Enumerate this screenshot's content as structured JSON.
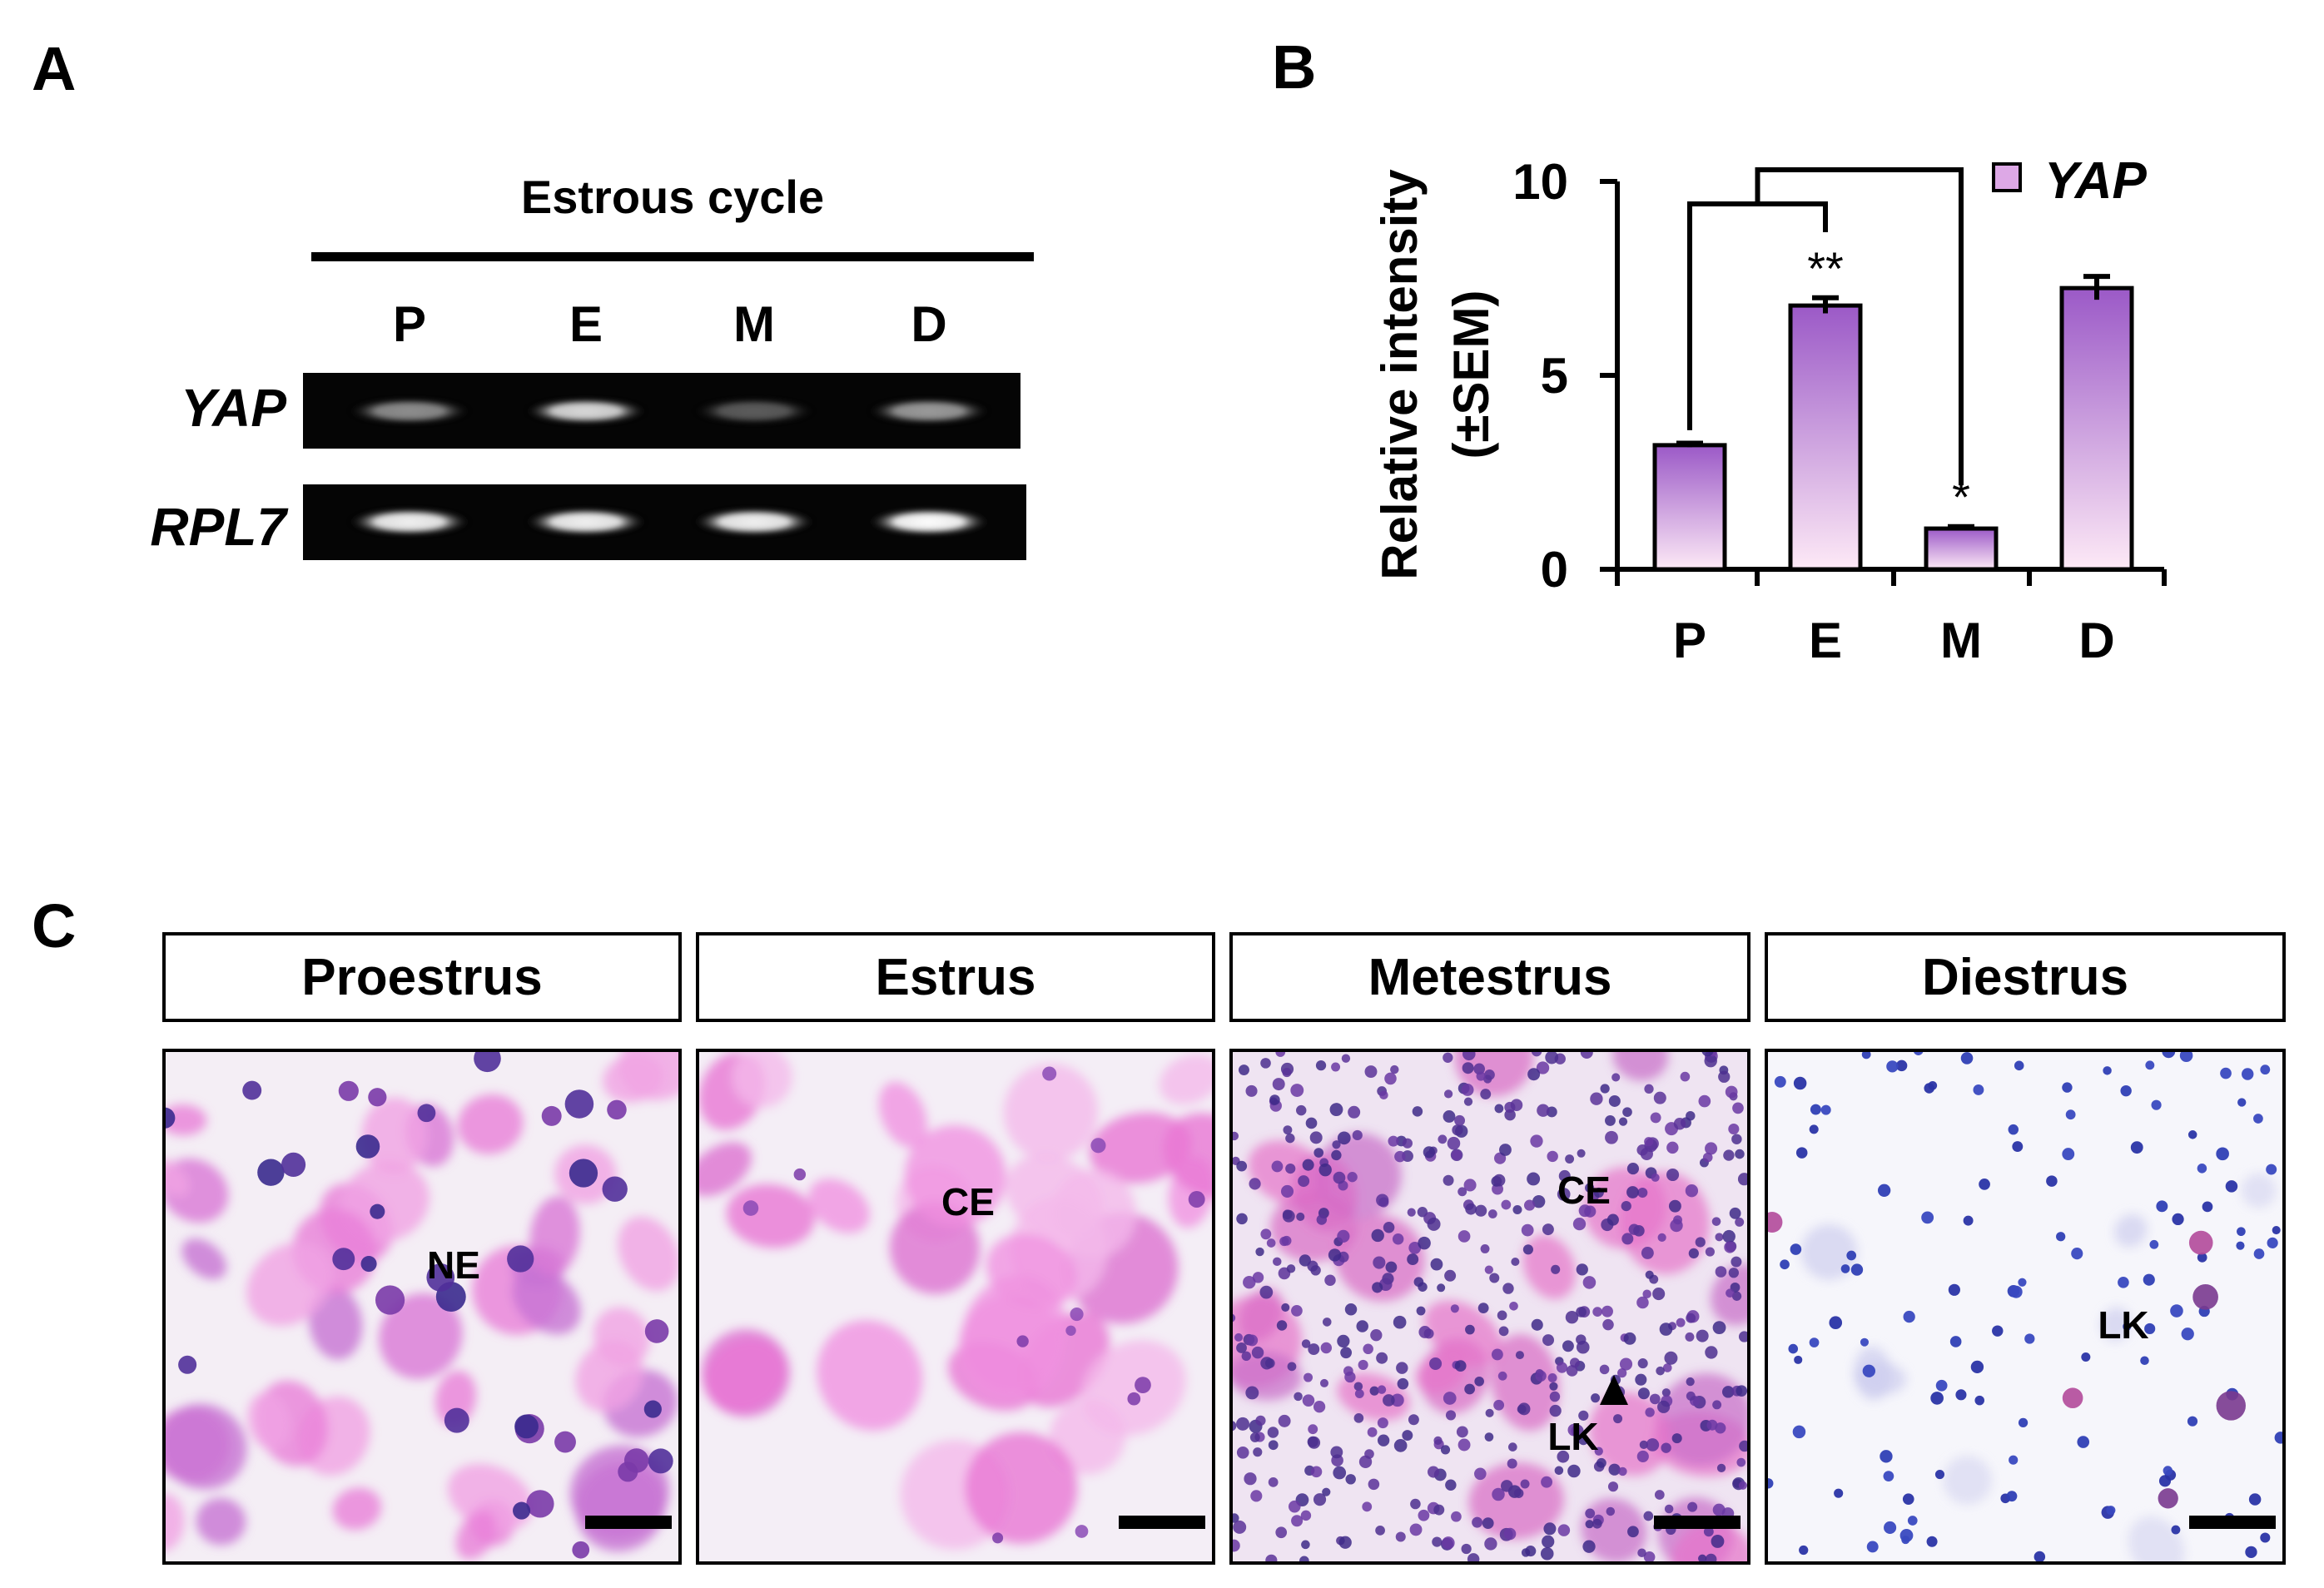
{
  "panels": {
    "a": {
      "letter": "A",
      "header": "Estrous cycle",
      "lanes": [
        "P",
        "E",
        "M",
        "D"
      ],
      "genes": [
        "YAP",
        "RPL7"
      ],
      "band_intensity": {
        "YAP": [
          0.55,
          0.85,
          0.35,
          0.6
        ],
        "RPL7": [
          0.95,
          0.95,
          0.95,
          1.0
        ]
      }
    },
    "b": {
      "letter": "B"
    },
    "c": {
      "letter": "C",
      "stages": [
        {
          "title": "Proestrus",
          "labels": [
            "NE"
          ]
        },
        {
          "title": "Estrus",
          "labels": [
            "CE"
          ]
        },
        {
          "title": "Metestrus",
          "labels": [
            "CE",
            "LK"
          ]
        },
        {
          "title": "Diestrus",
          "labels": [
            "LK"
          ]
        }
      ]
    }
  },
  "chart_data": {
    "type": "bar",
    "categories": [
      "P",
      "E",
      "M",
      "D"
    ],
    "series": [
      {
        "name": "YAP",
        "values": [
          3.2,
          6.8,
          1.05,
          7.25
        ],
        "errors": [
          0.05,
          0.2,
          0.05,
          0.3
        ]
      }
    ],
    "title": "",
    "xlabel": "",
    "ylabel": "Relative intensity",
    "ylabel2": "(±SEM)",
    "ylim": [
      0,
      10
    ],
    "yticks": [
      0,
      5,
      10
    ],
    "legend_position": "top-right",
    "significance": [
      {
        "from": "P",
        "to": "E",
        "marker": "**"
      },
      {
        "from": "P",
        "to": "M",
        "marker": "*"
      }
    ],
    "colors": {
      "bar_top": "#9b59c7",
      "bar_bottom": "#fde9f6",
      "legend_fill": "#dda8e6"
    }
  }
}
